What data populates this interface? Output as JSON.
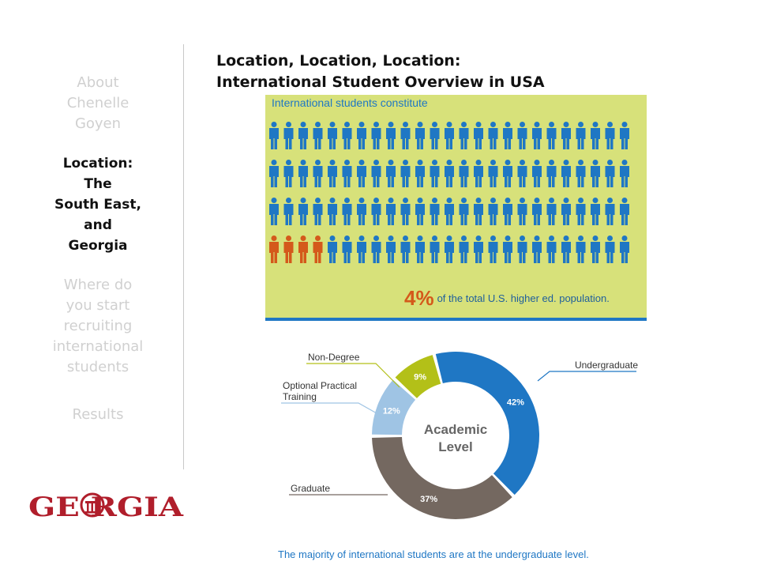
{
  "nav": {
    "items": [
      {
        "label_lines": [
          "About",
          "Chenelle",
          "Goyen"
        ],
        "active": false
      },
      {
        "label_lines": [
          "Location:",
          "The",
          "South East,",
          "and",
          "Georgia"
        ],
        "active": true
      },
      {
        "label_lines": [
          "Where do",
          "you start",
          "recruiting",
          "international",
          "students"
        ],
        "active": false
      },
      {
        "label_lines": [
          "Results"
        ],
        "active": false
      }
    ]
  },
  "logo": {
    "text": "GEORGIA",
    "color": "#b01e2b"
  },
  "title": {
    "line1": "Location, Location, Location:",
    "line2": "International Student Overview in USA"
  },
  "infographic": {
    "heading": "International students constitute",
    "percent": "4%",
    "statement": "of the total U.S. higher ed. population.",
    "highlight_fraction": 0.04,
    "figure_colors": {
      "normal": "#1f77c4",
      "highlight": "#d4591b"
    }
  },
  "chart_data": {
    "type": "pie",
    "center_label": [
      "Academic",
      "Level"
    ],
    "slices": [
      {
        "name": "Undergraduate",
        "value": 42,
        "label": "42%",
        "color": "#1f77c4"
      },
      {
        "name": "Graduate",
        "value": 37,
        "label": "37%",
        "color": "#746860"
      },
      {
        "name": "Optional Practical Training",
        "label_lines": [
          "Optional Practical",
          "Training"
        ],
        "value": 12,
        "label": "12%",
        "color": "#9fc4e4"
      },
      {
        "name": "Non-Degree",
        "value": 9,
        "label": "9%",
        "color": "#b3c018"
      }
    ]
  },
  "caption": "The majority of international students are at the undergraduate level."
}
